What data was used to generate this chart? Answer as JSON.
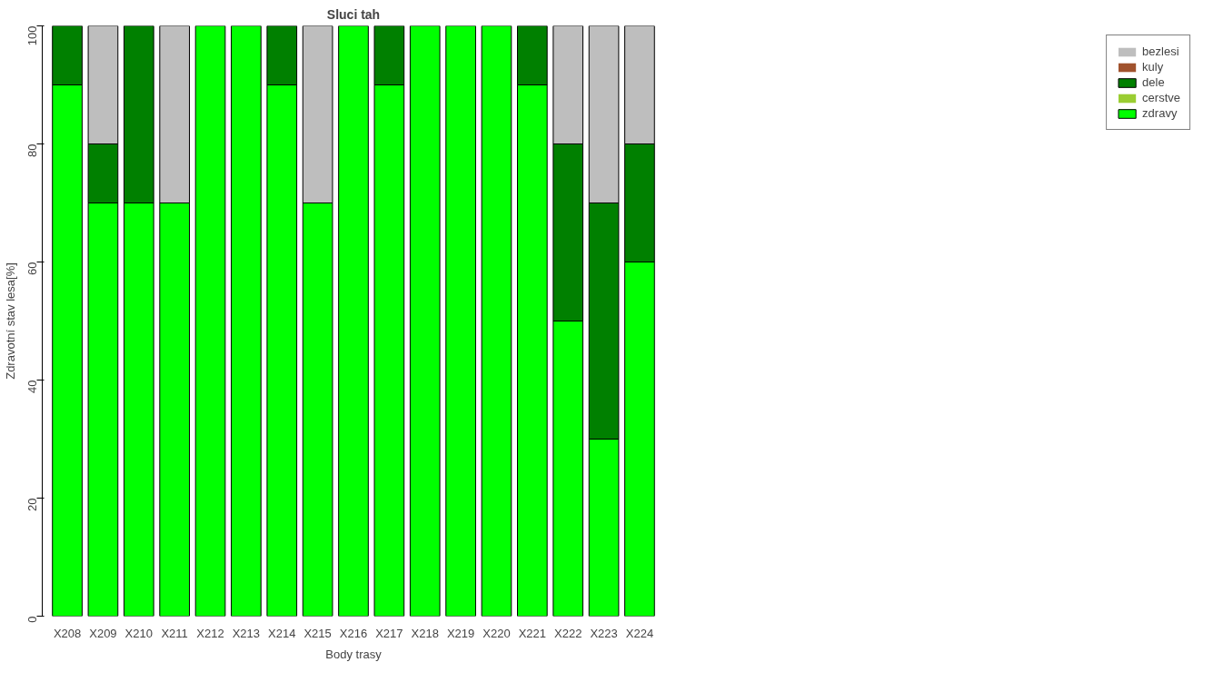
{
  "chart_data": {
    "type": "bar",
    "title": "Sluci tah",
    "xlabel": "Body trasy",
    "ylabel": "Zdravotní stav lesa[%]",
    "stacked": true,
    "categories": [
      "X208",
      "X209",
      "X210",
      "X211",
      "X212",
      "X213",
      "X214",
      "X215",
      "X216",
      "X217",
      "X218",
      "X219",
      "X220",
      "X221",
      "X222",
      "X223",
      "X224"
    ],
    "series": [
      {
        "name": "zdravy",
        "color": "#00ff00",
        "values": [
          90,
          70,
          70,
          70,
          100,
          100,
          90,
          70,
          100,
          90,
          100,
          100,
          100,
          90,
          50,
          30,
          60
        ]
      },
      {
        "name": "cerstve",
        "color": "#9acd32",
        "values": [
          0,
          0,
          0,
          0,
          0,
          0,
          0,
          0,
          0,
          0,
          0,
          0,
          0,
          0,
          0,
          0,
          0
        ]
      },
      {
        "name": "dele",
        "color": "#008000",
        "values": [
          10,
          10,
          30,
          0,
          0,
          0,
          10,
          0,
          0,
          10,
          0,
          0,
          0,
          10,
          30,
          40,
          20
        ]
      },
      {
        "name": "kuly",
        "color": "#a0522d",
        "values": [
          0,
          0,
          0,
          0,
          0,
          0,
          0,
          0,
          0,
          0,
          0,
          0,
          0,
          0,
          0,
          0,
          0
        ]
      },
      {
        "name": "bezlesi",
        "color": "#bebebe",
        "values": [
          0,
          20,
          0,
          30,
          0,
          0,
          0,
          30,
          0,
          0,
          0,
          0,
          0,
          0,
          20,
          30,
          20
        ]
      }
    ],
    "ylim": [
      0,
      100
    ],
    "yticks": [
      0,
      20,
      40,
      60,
      80,
      100
    ],
    "grid": false,
    "legend": "top right"
  }
}
